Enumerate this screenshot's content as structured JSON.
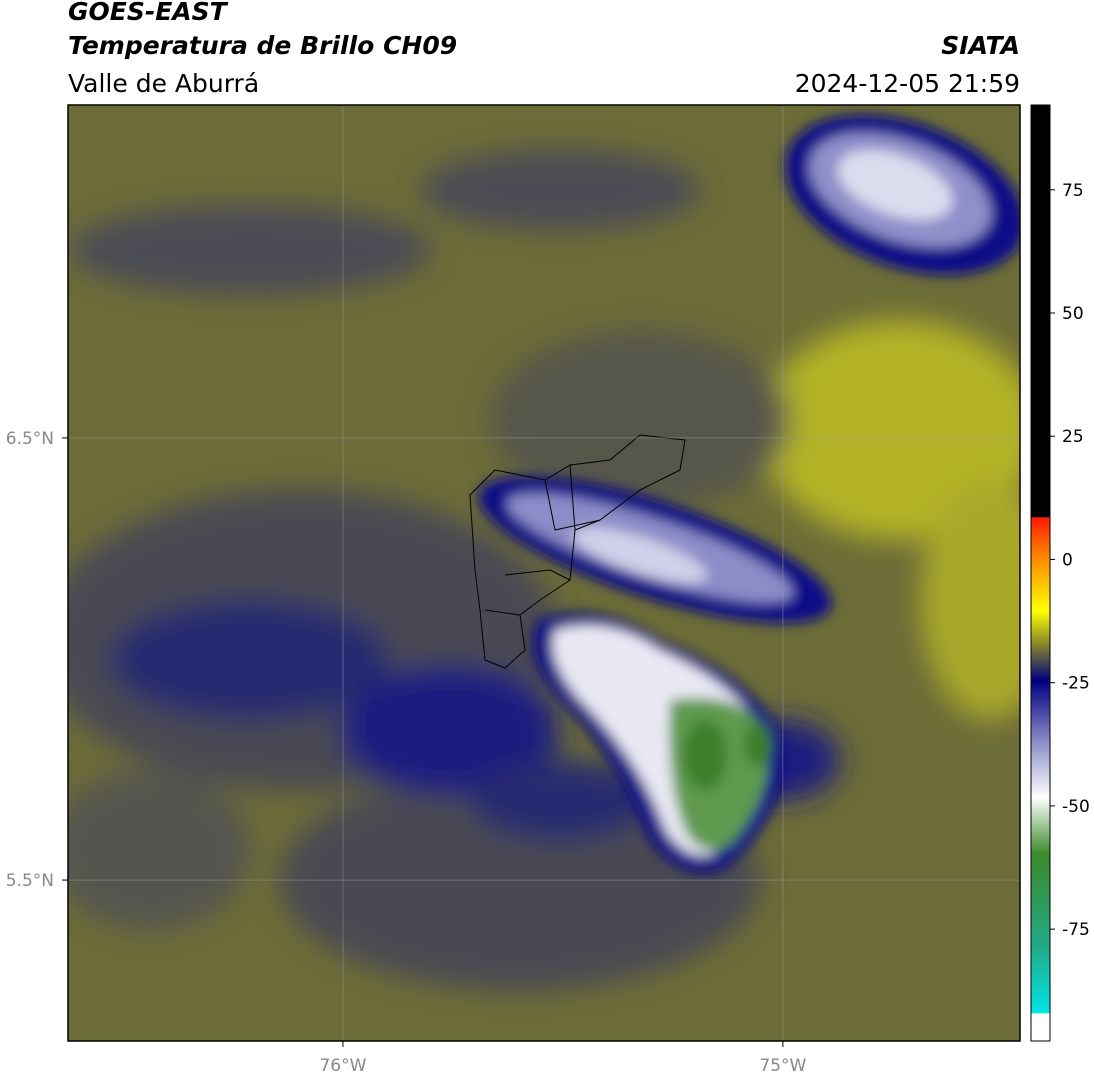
{
  "header": {
    "title": "GOES-EAST",
    "subtitle": "Temperatura de Brillo CH09",
    "region": "Valle de Aburrá",
    "source": "SIATA",
    "timestamp": "2024-12-05 21:59"
  },
  "map": {
    "lon_range": [
      -76.625,
      -74.461
    ],
    "lat_range": [
      5.136,
      7.253
    ],
    "lon_ticks": [
      {
        "value": -76,
        "label": "76°W"
      },
      {
        "value": -75,
        "label": "75°W"
      }
    ],
    "lat_ticks": [
      {
        "value": 6.5,
        "label": "6.5°N"
      },
      {
        "value": 5.5,
        "label": "5.5°N"
      }
    ]
  },
  "colorbar": {
    "range": [
      -97.7,
      92.2
    ],
    "ticks": [
      75,
      50,
      25,
      0,
      -25,
      -50,
      -75
    ]
  }
}
